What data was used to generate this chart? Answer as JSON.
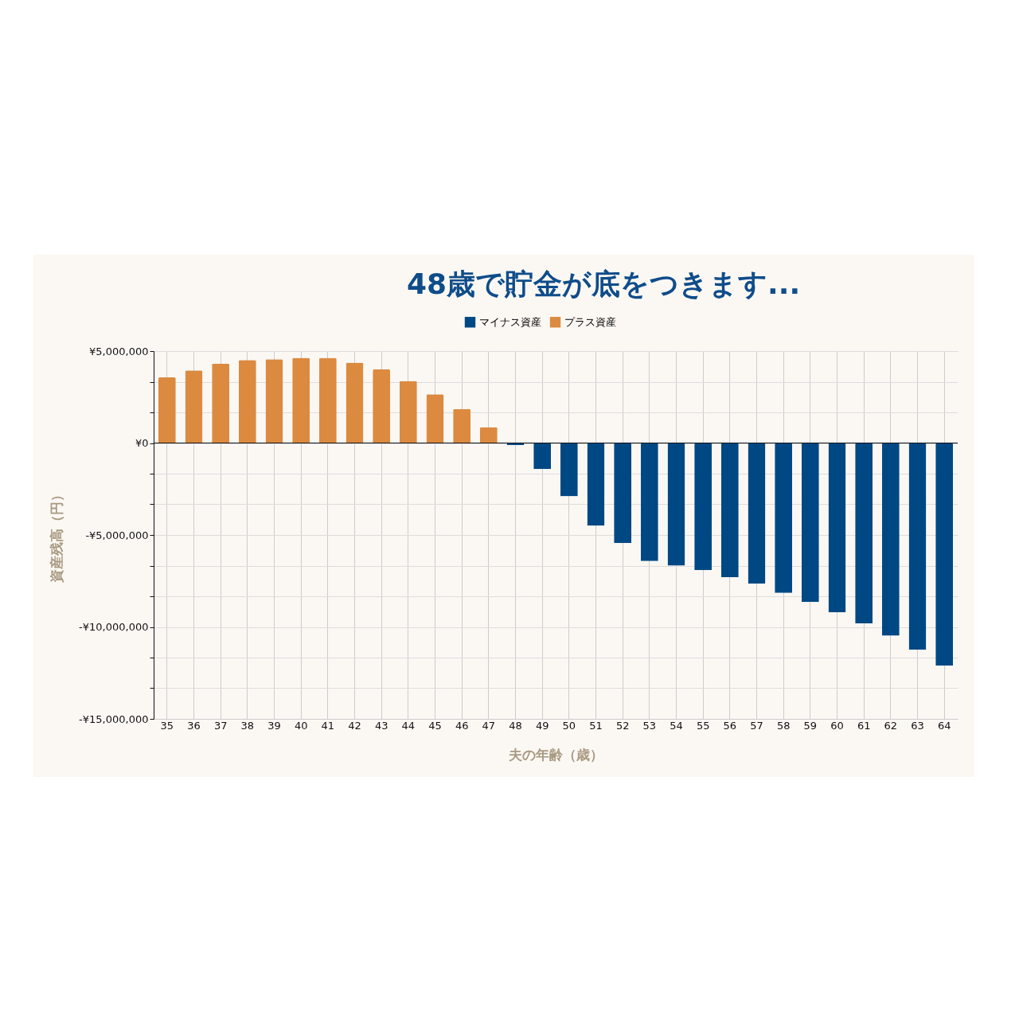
{
  "chart_data": {
    "type": "bar",
    "title": "48歳で貯金が底をつきます...",
    "xlabel": "夫の年齢（歳）",
    "ylabel": "資産残高（円）",
    "categories": [
      "35",
      "36",
      "37",
      "38",
      "39",
      "40",
      "41",
      "42",
      "43",
      "44",
      "45",
      "46",
      "47",
      "48",
      "49",
      "50",
      "51",
      "52",
      "53",
      "54",
      "55",
      "56",
      "57",
      "58",
      "59",
      "60",
      "61",
      "62",
      "63",
      "64"
    ],
    "series": [
      {
        "name": "マイナス資産",
        "color": "#004884",
        "values": [
          null,
          null,
          null,
          null,
          null,
          null,
          null,
          null,
          null,
          null,
          null,
          null,
          null,
          -120000,
          -1420000,
          -2900000,
          -4500000,
          -5440000,
          -6420000,
          -6670000,
          -6920000,
          -7290000,
          -7650000,
          -8150000,
          -8650000,
          -9210000,
          -9810000,
          -10480000,
          -11230000,
          -12100000
        ]
      },
      {
        "name": "プラス資産",
        "color": "#dc8a40",
        "values": [
          3570000,
          3950000,
          4320000,
          4510000,
          4560000,
          4630000,
          4630000,
          4370000,
          4000000,
          3380000,
          2650000,
          1850000,
          870000,
          null,
          null,
          null,
          null,
          null,
          null,
          null,
          null,
          null,
          null,
          null,
          null,
          null,
          null,
          null,
          null,
          null
        ]
      }
    ],
    "ylim": [
      -15000000,
      5000000
    ],
    "yticks": [
      {
        "value": 5000000,
        "label": "¥5,000,000"
      },
      {
        "value": 3333333,
        "label": null
      },
      {
        "value": 1666667,
        "label": null
      },
      {
        "value": 0,
        "label": "¥0"
      },
      {
        "value": -1666667,
        "label": null
      },
      {
        "value": -3333333,
        "label": null
      },
      {
        "value": -5000000,
        "label": "-¥5,000,000"
      },
      {
        "value": -6666667,
        "label": null
      },
      {
        "value": -8333333,
        "label": null
      },
      {
        "value": -10000000,
        "label": "-¥10,000,000"
      },
      {
        "value": -11666667,
        "label": null
      },
      {
        "value": -13333333,
        "label": null
      },
      {
        "value": -15000000,
        "label": "-¥15,000,000"
      }
    ],
    "grid": true,
    "legend": "top"
  }
}
